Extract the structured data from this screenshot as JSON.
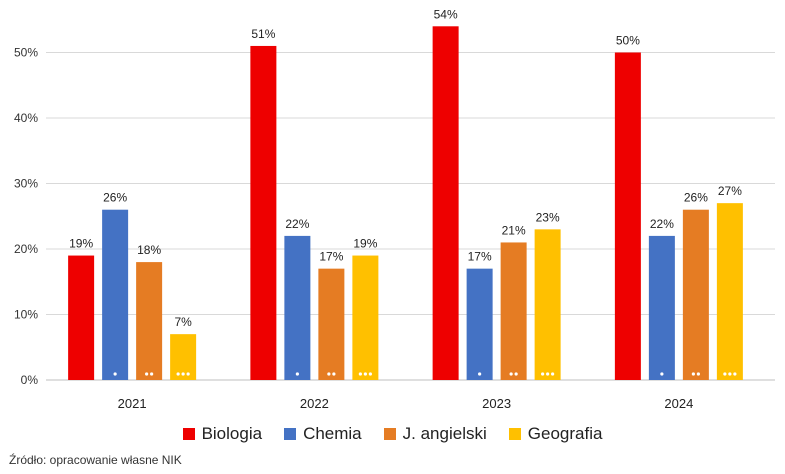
{
  "chart_data": {
    "type": "bar",
    "categories": [
      "2021",
      "2022",
      "2023",
      "2024"
    ],
    "series": [
      {
        "name": "Biologia",
        "color": "#ee0000",
        "values": [
          19,
          51,
          54,
          50
        ],
        "labels": [
          "19%",
          "51%",
          "54%",
          "50%"
        ]
      },
      {
        "name": "Chemia",
        "color": "#4472c4",
        "values": [
          26,
          22,
          17,
          22
        ],
        "labels": [
          "26%",
          "22%",
          "17%",
          "22%"
        ]
      },
      {
        "name": "J. angielski",
        "color": "#e57c23",
        "values": [
          18,
          17,
          21,
          26
        ],
        "labels": [
          "18%",
          "17%",
          "21%",
          "26%"
        ]
      },
      {
        "name": "Geografia",
        "color": "#ffc000",
        "values": [
          7,
          19,
          23,
          27
        ],
        "labels": [
          "7%",
          "19%",
          "23%",
          "27%"
        ]
      }
    ],
    "yticks": [
      "0%",
      "10%",
      "20%",
      "30%",
      "40%",
      "50%"
    ],
    "ylim": [
      0,
      55
    ],
    "grid": true,
    "legend_position": "bottom"
  },
  "source": "Źródło: opracowanie własne NIK"
}
